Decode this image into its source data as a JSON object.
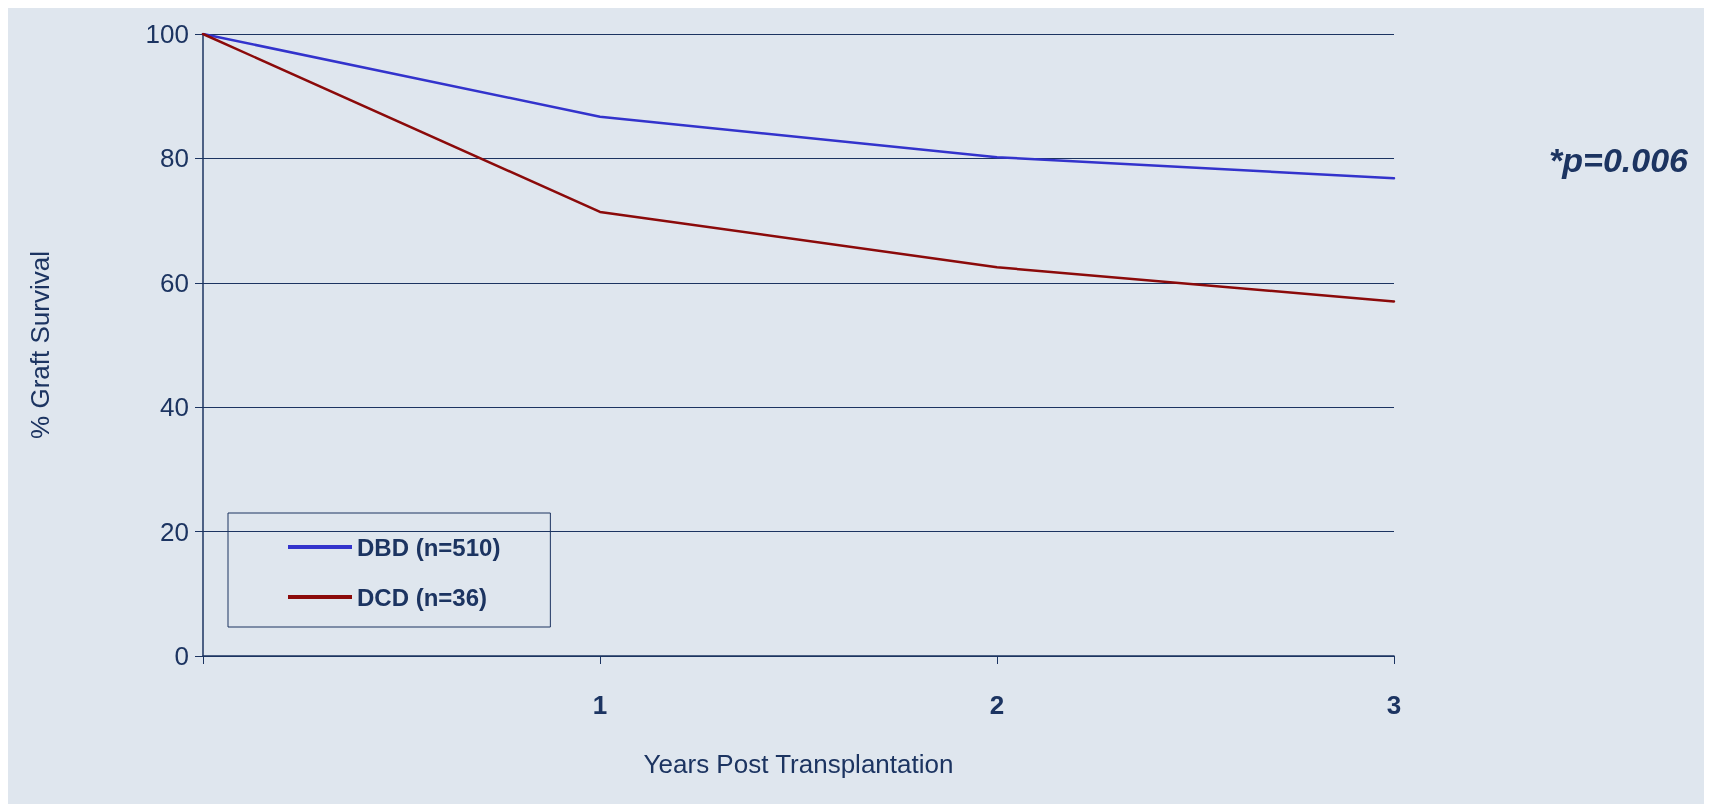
{
  "chart_data": {
    "type": "line",
    "xlabel": "Years Post Transplantation",
    "ylabel": "% Graft Survival",
    "x": [
      0,
      1,
      2,
      3
    ],
    "series": [
      {
        "name": "DBD (n=510)",
        "color": "#3333cc",
        "values": [
          100,
          86.7,
          80.2,
          76.8
        ]
      },
      {
        "name": "DCD (n=36)",
        "color": "#8b0a0a",
        "values": [
          100,
          71.4,
          62.5,
          57.0
        ]
      }
    ],
    "xlim": [
      0,
      3
    ],
    "xticks": [
      {
        "value": 0,
        "label": null
      },
      1,
      2,
      3
    ],
    "ylim": [
      0,
      100
    ],
    "yticks": [
      0,
      20,
      40,
      60,
      80,
      100
    ],
    "grid": "y",
    "legend": "bottom left",
    "marker": "none",
    "line_style": "solid",
    "annotations": [
      "*p=0.006"
    ]
  }
}
